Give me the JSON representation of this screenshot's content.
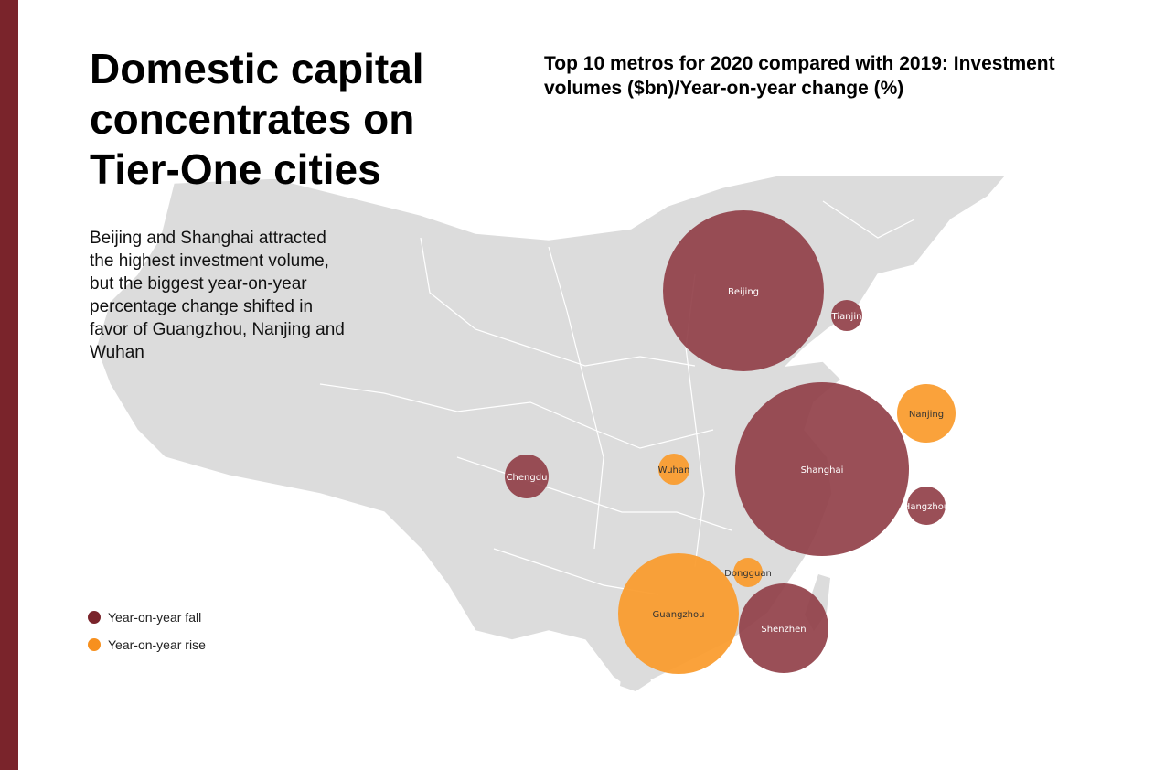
{
  "headline": "Domestic capital concentrates on Tier-One cities",
  "subtitle": "Beijing and Shanghai attracted the highest investment volume, but the biggest year-on-year percentage change shifted in favor of Guangzhou, Nanjing and Wuhan",
  "chart_title": "Top 10 metros for 2020 compared with 2019: Investment volumes ($bn)/Year-on-year change (%)",
  "legend": [
    {
      "label": "Year-on-year fall",
      "color": "#7a242b"
    },
    {
      "label": "Year-on-year rise",
      "color": "#f7901e"
    }
  ],
  "colors": {
    "fall": "#8f3c45",
    "rise": "#fa9a2a",
    "land": "#dcdcdc",
    "accent": "#7a242b"
  },
  "chart_data": {
    "type": "bubble-map",
    "cities": [
      {
        "name": "Beijing",
        "change": "fall"
      },
      {
        "name": "Tianjin",
        "change": "fall"
      },
      {
        "name": "Nanjing",
        "change": "rise"
      },
      {
        "name": "Shanghai",
        "change": "fall"
      },
      {
        "name": "Hangzhou",
        "change": "fall"
      },
      {
        "name": "Wuhan",
        "change": "rise"
      },
      {
        "name": "Chengdu",
        "change": "fall"
      },
      {
        "name": "Dongguan",
        "change": "rise"
      },
      {
        "name": "Guangzhou",
        "change": "rise"
      },
      {
        "name": "Shenzhen",
        "change": "fall"
      }
    ]
  }
}
